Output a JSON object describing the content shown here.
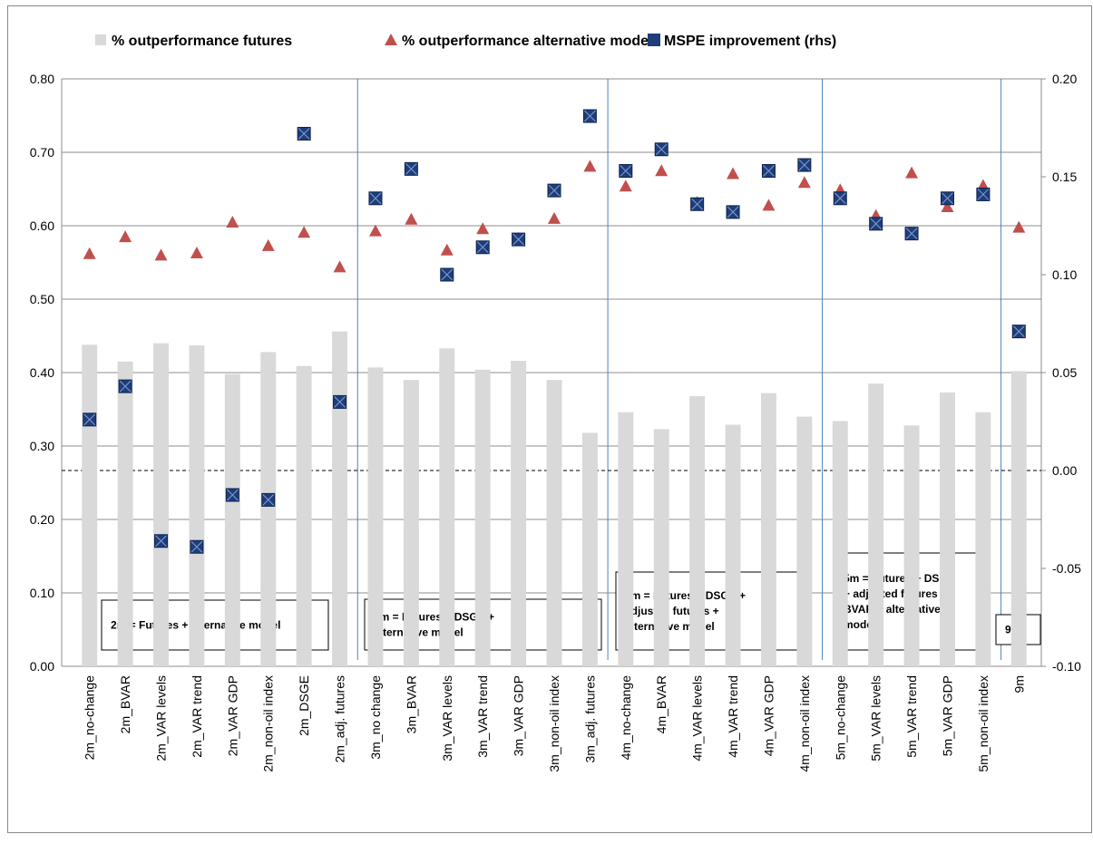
{
  "chart_data": {
    "type": "combo",
    "categories": [
      "2m_no-change",
      "2m_BVAR",
      "2m_VAR levels",
      "2m_VAR trend",
      "2m_VAR GDP",
      "2m_non-oil index",
      "2m_DSGE",
      "2m_adj. futures",
      "3m_no change",
      "3m_BVAR",
      "3m_VAR levels",
      "3m_VAR trend",
      "3m_VAR GDP",
      "3m_non-oil index",
      "3m_adj. futures",
      "4m_no-change",
      "4m_BVAR",
      "4m_VAR levels",
      "4m_VAR trend",
      "4m_VAR GDP",
      "4m_non-oil index",
      "5m_no-change",
      "5m_VAR levels",
      "5m_VAR trend",
      "5m_VAR GDP",
      "5m_non-oil index",
      "9m"
    ],
    "series": [
      {
        "name": "% outperformance futures",
        "kind": "bar",
        "color": "#d9d9d9",
        "values": [
          0.438,
          0.415,
          0.44,
          0.437,
          0.398,
          0.428,
          0.409,
          0.456,
          0.407,
          0.39,
          0.433,
          0.404,
          0.416,
          0.39,
          0.318,
          0.346,
          0.323,
          0.368,
          0.329,
          0.372,
          0.34,
          0.334,
          0.385,
          0.328,
          0.373,
          0.346,
          0.402
        ]
      },
      {
        "name": "% outperformance alternative model",
        "kind": "triangle",
        "color": "#c0504d",
        "values": [
          0.562,
          0.585,
          0.56,
          0.563,
          0.605,
          0.573,
          0.591,
          0.544,
          0.593,
          0.609,
          0.567,
          0.596,
          0.583,
          0.61,
          0.681,
          0.654,
          0.675,
          0.632,
          0.671,
          0.628,
          0.659,
          0.649,
          0.614,
          0.672,
          0.626,
          0.655,
          0.598
        ]
      },
      {
        "name": "MSPE improvement (rhs)",
        "kind": "square",
        "color": "#1f3d7a",
        "axis": "y2",
        "values": [
          0.026,
          0.043,
          -0.036,
          -0.039,
          -0.0125,
          -0.015,
          0.172,
          0.035,
          0.139,
          0.154,
          0.1,
          0.114,
          0.118,
          0.143,
          0.181,
          0.153,
          0.164,
          0.136,
          0.132,
          0.153,
          0.156,
          0.139,
          0.126,
          0.121,
          0.139,
          0.141,
          0.071
        ]
      }
    ],
    "ylim": [
      0,
      0.8
    ],
    "yticks": [
      {
        "value": 0,
        "label": "0.00"
      },
      {
        "value": 0.1,
        "label": "0.10"
      },
      {
        "value": 0.2,
        "label": "0.20"
      },
      {
        "value": 0.3,
        "label": "0.30"
      },
      {
        "value": 0.4,
        "label": "0.40"
      },
      {
        "value": 0.5,
        "label": "0.50"
      },
      {
        "value": 0.6,
        "label": "0.60"
      },
      {
        "value": 0.7,
        "label": "0.70"
      },
      {
        "value": 0.8,
        "label": "0.80"
      }
    ],
    "y2lim": [
      -0.1,
      0.2
    ],
    "y2ticks": [
      {
        "value": -0.1,
        "label": "-0.10"
      },
      {
        "value": -0.05,
        "label": "-0.05"
      },
      {
        "value": 0,
        "label": "0.00"
      },
      {
        "value": 0.05,
        "label": "0.05"
      },
      {
        "value": 0.1,
        "label": "0.10"
      },
      {
        "value": 0.15,
        "label": "0.15"
      },
      {
        "value": 0.2,
        "label": "0.20"
      }
    ],
    "grid": true,
    "legend": "top",
    "annotations": [
      {
        "lines": [
          "2m = Futures + alternative model"
        ]
      },
      {
        "lines": [
          "3m = Futures + DSGE +",
          "alternative model"
        ]
      },
      {
        "lines": [
          "4m = Futures + DSGE +",
          "adjusted futures +",
          "alternative model"
        ]
      },
      {
        "lines": [
          "5m = Futures + DSGE",
          "+ adjusted futures +",
          "BVAR + alternative",
          "model"
        ]
      },
      {
        "lines": [
          "9m"
        ]
      }
    ]
  }
}
